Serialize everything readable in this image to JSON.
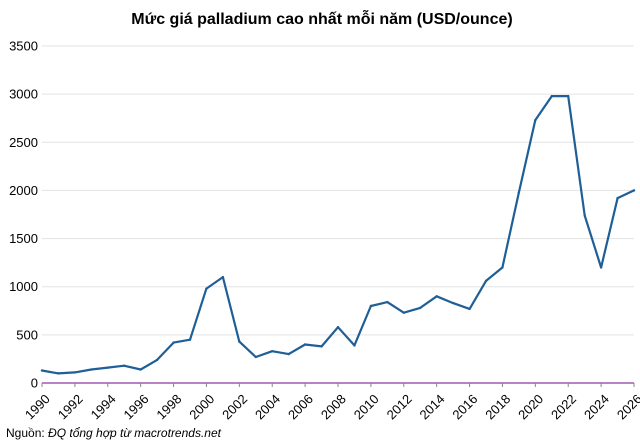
{
  "chart_data": {
    "type": "line",
    "title": "Mức giá palladium cao nhất mỗi năm (USD/ounce)",
    "xlabel": "",
    "ylabel": "",
    "ylim": [
      0,
      3500
    ],
    "xlim": [
      1990,
      2026
    ],
    "y_ticks": [
      0,
      500,
      1000,
      1500,
      2000,
      2500,
      3000,
      3500
    ],
    "x_ticks": [
      1990,
      1992,
      1994,
      1996,
      1998,
      2000,
      2002,
      2004,
      2006,
      2008,
      2010,
      2012,
      2014,
      2016,
      2018,
      2020,
      2022,
      2024,
      2026
    ],
    "grid": "horizontal",
    "colors": {
      "line": "#1f5f97",
      "axis": "#a05ab0",
      "grid": "#e3e3e3"
    },
    "series": [
      {
        "x": [
          1990,
          1991,
          1992,
          1993,
          1994,
          1995,
          1996,
          1997,
          1998,
          1999,
          2000,
          2001,
          2002,
          2003,
          2004,
          2005,
          2006,
          2007,
          2008,
          2009,
          2010,
          2011,
          2012,
          2013,
          2014,
          2015,
          2016,
          2017,
          2018,
          2019,
          2020,
          2021,
          2022,
          2023,
          2024,
          2025,
          2026
        ],
        "values": [
          130,
          100,
          110,
          140,
          160,
          180,
          140,
          240,
          420,
          450,
          980,
          1100,
          430,
          270,
          330,
          300,
          400,
          380,
          580,
          390,
          800,
          840,
          730,
          780,
          900,
          830,
          770,
          1060,
          1200,
          1980,
          2730,
          2980,
          2980,
          1740,
          1200,
          1920,
          2000
        ]
      }
    ]
  },
  "source": {
    "prefix": "Nguồn: ",
    "text": "ĐQ tổng hợp từ macrotrends.net"
  }
}
